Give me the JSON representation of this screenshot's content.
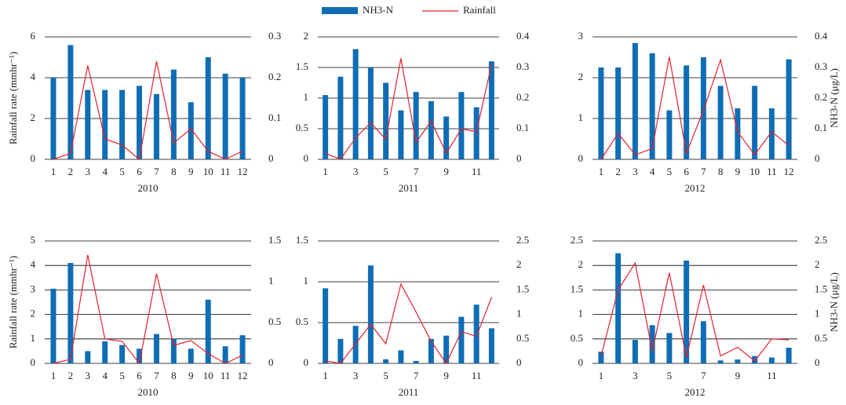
{
  "chart_data": [
    {
      "type": "combo",
      "legend": "top",
      "xlabel": "2010",
      "ylabel": "Rainfall rate (mmhr⁻¹)",
      "categories": [
        "1",
        "2",
        "3",
        "4",
        "5",
        "6",
        "7",
        "8",
        "9",
        "10",
        "11",
        "12"
      ],
      "ylim": [
        0,
        6
      ],
      "yticks": [
        0,
        2,
        4,
        6
      ],
      "y2lim": [
        0,
        0.3
      ],
      "y2ticks": [
        0,
        0.1,
        0.2,
        0.3
      ],
      "grid": true,
      "series": [
        {
          "name": "NH3-N",
          "type": "bar",
          "color": "#0f6db5",
          "values": [
            4.0,
            5.6,
            3.4,
            3.4,
            3.4,
            3.6,
            3.2,
            4.4,
            2.8,
            5.0,
            4.2,
            4.0
          ]
        },
        {
          "name": "Rainfall",
          "type": "line",
          "axis": "y2",
          "color": "#e3222b",
          "values": [
            0,
            0.015,
            0.23,
            0.05,
            0.035,
            0,
            0.24,
            0.04,
            0.075,
            0.02,
            0,
            0.02
          ]
        }
      ]
    },
    {
      "type": "combo",
      "xlabel": "2011",
      "categories": [
        "1",
        null,
        "3",
        null,
        "5",
        null,
        "7",
        null,
        "9",
        null,
        "11",
        null
      ],
      "ylim": [
        0,
        2
      ],
      "yticks": [
        0,
        0.5,
        1,
        1.5,
        2
      ],
      "y2lim": [
        0,
        0.4
      ],
      "y2ticks": [
        0,
        0.1,
        0.2,
        0.3,
        0.4
      ],
      "grid": true,
      "series": [
        {
          "name": "NH3-N",
          "type": "bar",
          "color": "#0f6db5",
          "values": [
            1.05,
            1.35,
            1.8,
            1.5,
            1.25,
            0.8,
            1.1,
            0.95,
            0.7,
            1.1,
            0.85,
            1.6
          ]
        },
        {
          "name": "Rainfall",
          "type": "line",
          "axis": "y2",
          "color": "#e3222b",
          "values": [
            0.02,
            0,
            0.07,
            0.12,
            0.065,
            0.33,
            0.055,
            0.125,
            0.02,
            0.1,
            0.09,
            0.31
          ]
        }
      ]
    },
    {
      "type": "combo",
      "xlabel": "2012",
      "y2label": "NH3-N (μg/L)",
      "categories": [
        "1",
        "2",
        "3",
        "4",
        "5",
        "6",
        "7",
        "8",
        "9",
        "10",
        "11",
        "12"
      ],
      "ylim": [
        0,
        3
      ],
      "yticks": [
        0,
        1,
        2,
        3
      ],
      "y2lim": [
        0,
        0.4
      ],
      "y2ticks": [
        0,
        0.1,
        0.2,
        0.3,
        0.4
      ],
      "grid": true,
      "series": [
        {
          "name": "NH3-N",
          "type": "bar",
          "color": "#0f6db5",
          "values": [
            2.25,
            2.25,
            2.85,
            2.6,
            1.2,
            2.3,
            2.5,
            1.8,
            1.25,
            1.8,
            1.25,
            2.45
          ]
        },
        {
          "name": "Rainfall",
          "type": "line",
          "axis": "y2",
          "color": "#e3222b",
          "values": [
            0,
            0.085,
            0.015,
            0.035,
            0.335,
            0.02,
            0.16,
            0.325,
            0.09,
            0.015,
            0.09,
            0.045
          ]
        }
      ]
    },
    {
      "type": "combo",
      "xlabel": "2010",
      "ylabel": "Rainfall rate (mmhr⁻¹)",
      "categories": [
        "1",
        "2",
        "3",
        "4",
        "5",
        "6",
        "7",
        "8",
        "9",
        "10",
        "11",
        "12"
      ],
      "ylim": [
        0,
        5
      ],
      "yticks": [
        0,
        1,
        2,
        3,
        4,
        5
      ],
      "y2lim": [
        0,
        1.5
      ],
      "y2ticks": [
        0,
        0.5,
        1,
        1.5
      ],
      "grid": true,
      "series": [
        {
          "name": "NH3-N",
          "type": "bar",
          "color": "#0f6db5",
          "values": [
            3.05,
            4.1,
            0.5,
            0.9,
            0.75,
            0.6,
            1.2,
            1.0,
            0.6,
            2.6,
            0.7,
            1.15
          ]
        },
        {
          "name": "Rainfall",
          "type": "line",
          "axis": "y2",
          "color": "#e3222b",
          "values": [
            0,
            0.05,
            1.33,
            0.3,
            0.27,
            0,
            1.1,
            0.22,
            0.28,
            0.12,
            0,
            0.1
          ]
        }
      ]
    },
    {
      "type": "combo",
      "xlabel": "2011",
      "categories": [
        "1",
        null,
        "3",
        null,
        "5",
        null,
        "7",
        null,
        "9",
        null,
        "11",
        null
      ],
      "ylim": [
        0,
        1.5
      ],
      "yticks": [
        0,
        0.5,
        1,
        1.5
      ],
      "y2lim": [
        0,
        2.5
      ],
      "y2ticks": [
        0,
        0.5,
        1,
        1.5,
        2,
        2.5
      ],
      "grid": true,
      "series": [
        {
          "name": "NH3-N",
          "type": "bar",
          "color": "#0f6db5",
          "values": [
            0.92,
            0.3,
            0.46,
            1.2,
            0.05,
            0.16,
            0.03,
            0.3,
            0.34,
            0.57,
            0.72,
            0.43
          ]
        },
        {
          "name": "Rainfall",
          "type": "line",
          "axis": "y2",
          "color": "#e3222b",
          "values": [
            0.05,
            0,
            0.4,
            0.8,
            0.4,
            1.62,
            1.05,
            0.45,
            0,
            0.65,
            0.55,
            1.35
          ]
        }
      ]
    },
    {
      "type": "combo",
      "xlabel": "2012",
      "y2label": "NH3-N (μg/L)",
      "categories": [
        "1",
        null,
        "3",
        null,
        "5",
        null,
        "7",
        null,
        "9",
        null,
        "11",
        null
      ],
      "ylim": [
        0,
        2.5
      ],
      "yticks": [
        0,
        0.5,
        1,
        1.5,
        2,
        2.5
      ],
      "y2lim": [
        0,
        2.5
      ],
      "y2ticks": [
        0,
        0.5,
        1,
        1.5,
        2,
        2.5
      ],
      "grid": true,
      "series": [
        {
          "name": "NH3-N",
          "type": "bar",
          "color": "#0f6db5",
          "values": [
            0.24,
            2.25,
            0.48,
            0.78,
            0.62,
            2.1,
            0.86,
            0.06,
            0.08,
            0.15,
            0.12,
            0.32
          ]
        },
        {
          "name": "Rainfall",
          "type": "line",
          "axis": "y2",
          "color": "#e3222b",
          "values": [
            0.15,
            1.5,
            2.05,
            0.25,
            1.85,
            0.12,
            1.6,
            0.15,
            0.33,
            0.05,
            0.5,
            0.48
          ]
        }
      ]
    }
  ]
}
